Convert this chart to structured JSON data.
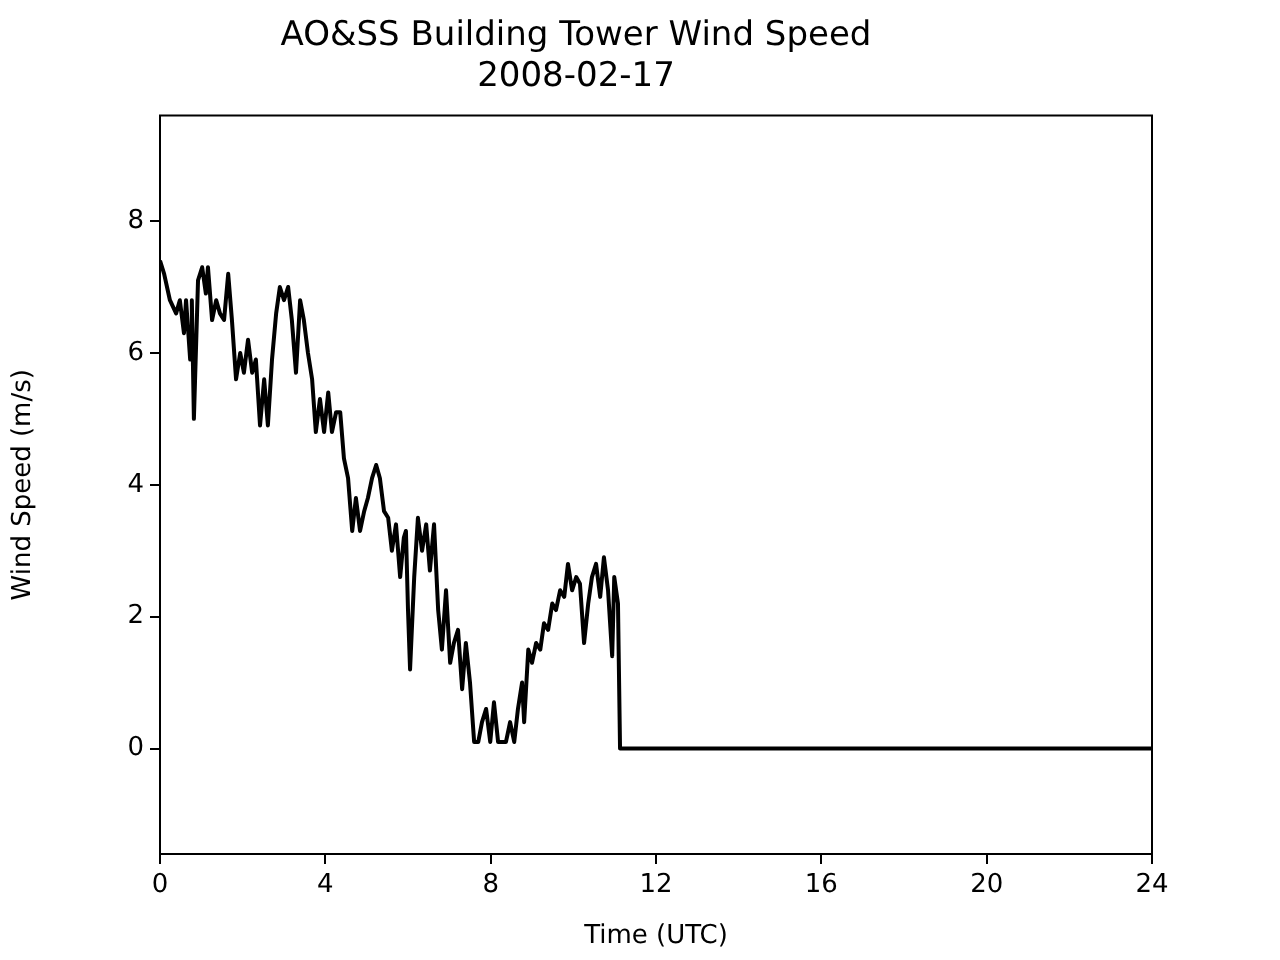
{
  "chart_data": {
    "type": "line",
    "title": "AO&SS Building Tower Wind Speed",
    "subtitle": "2008-02-17",
    "xlabel": "Time (UTC)",
    "ylabel": "Wind Speed (m/s)",
    "x": [
      0,
      0.1,
      0.24,
      0.39,
      0.48,
      0.58,
      0.63,
      0.73,
      0.77,
      0.82,
      0.92,
      1.02,
      1.11,
      1.16,
      1.26,
      1.36,
      1.45,
      1.55,
      1.65,
      1.74,
      1.84,
      1.94,
      2.03,
      2.13,
      2.23,
      2.32,
      2.42,
      2.52,
      2.61,
      2.71,
      2.81,
      2.9,
      3.0,
      3.1,
      3.19,
      3.29,
      3.39,
      3.48,
      3.58,
      3.68,
      3.77,
      3.87,
      3.97,
      4.07,
      4.16,
      4.26,
      4.36,
      4.45,
      4.55,
      4.65,
      4.74,
      4.84,
      4.94,
      5.03,
      5.13,
      5.23,
      5.32,
      5.42,
      5.52,
      5.61,
      5.71,
      5.81,
      5.9,
      5.95,
      6.0,
      6.05,
      6.15,
      6.24,
      6.34,
      6.44,
      6.53,
      6.63,
      6.73,
      6.82,
      6.92,
      7.02,
      7.11,
      7.21,
      7.31,
      7.4,
      7.5,
      7.6,
      7.7,
      7.79,
      7.89,
      7.99,
      8.08,
      8.18,
      8.37,
      8.47,
      8.57,
      8.66,
      8.76,
      8.81,
      8.91,
      9.0,
      9.1,
      9.2,
      9.29,
      9.39,
      9.49,
      9.58,
      9.68,
      9.78,
      9.87,
      9.97,
      10.07,
      10.16,
      10.26,
      10.36,
      10.45,
      10.55,
      10.65,
      10.74,
      10.84,
      10.94,
      10.99,
      11.08,
      11.13,
      24
    ],
    "series": [
      {
        "color": "#000000",
        "values": [
          7.4,
          7.2,
          6.8,
          6.6,
          6.8,
          6.3,
          6.8,
          5.9,
          6.8,
          5.0,
          7.1,
          7.3,
          6.9,
          7.3,
          6.5,
          6.8,
          6.6,
          6.5,
          7.2,
          6.5,
          5.6,
          6.0,
          5.7,
          6.2,
          5.7,
          5.9,
          4.9,
          5.6,
          4.9,
          5.9,
          6.6,
          7.0,
          6.8,
          7.0,
          6.5,
          5.7,
          6.8,
          6.5,
          6.0,
          5.6,
          4.8,
          5.3,
          4.8,
          5.4,
          4.8,
          5.1,
          5.1,
          4.4,
          4.1,
          3.3,
          3.8,
          3.3,
          3.6,
          3.8,
          4.1,
          4.3,
          4.1,
          3.6,
          3.5,
          3.0,
          3.4,
          2.6,
          3.2,
          3.3,
          2.1,
          1.2,
          2.6,
          3.5,
          3.0,
          3.4,
          2.7,
          3.4,
          2.1,
          1.5,
          2.4,
          1.3,
          1.6,
          1.8,
          0.9,
          1.6,
          1.0,
          0.1,
          0.1,
          0.4,
          0.6,
          0.1,
          0.7,
          0.1,
          0.1,
          0.4,
          0.1,
          0.6,
          1.0,
          0.4,
          1.5,
          1.3,
          1.6,
          1.5,
          1.9,
          1.8,
          2.2,
          2.1,
          2.4,
          2.3,
          2.8,
          2.4,
          2.6,
          2.5,
          1.6,
          2.2,
          2.6,
          2.8,
          2.3,
          2.9,
          2.4,
          1.4,
          2.6,
          2.2,
          0,
          0
        ]
      }
    ],
    "xlim": [
      0,
      24
    ],
    "xticks": [
      0,
      4,
      8,
      12,
      16,
      20,
      24
    ],
    "ylim": [
      -1.6,
      9.6
    ],
    "yticks": [
      0,
      2,
      4,
      6,
      8
    ],
    "grid": false,
    "legend": false,
    "marker": "none",
    "line_style": "solid"
  }
}
